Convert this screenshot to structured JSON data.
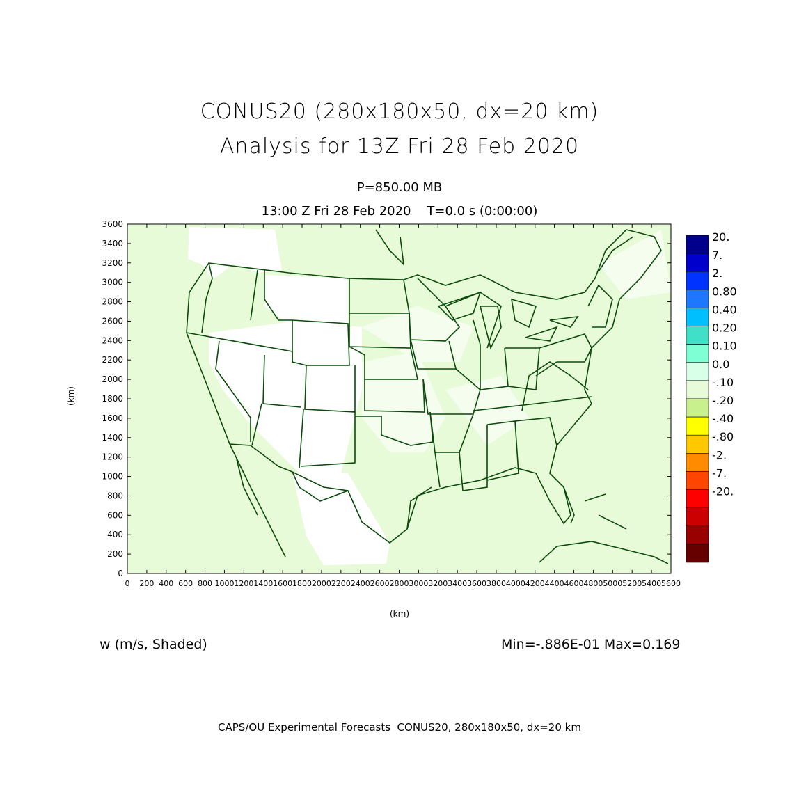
{
  "title": {
    "line1": "CONUS20 (280x180x50, dx=20 km)",
    "line2": "Analysis for 13Z Fri 28 Feb 2020"
  },
  "subtitle": {
    "level": "P=850.00 MB",
    "time": "13:00 Z Fri 28 Feb 2020    T=0.0 s (0:00:00)"
  },
  "axes": {
    "ylabel": "(km)",
    "xlabel": "(km)",
    "yticks": [
      "0",
      "200",
      "400",
      "600",
      "800",
      "1000",
      "1200",
      "1400",
      "1600",
      "1800",
      "2000",
      "2200",
      "2400",
      "2600",
      "2800",
      "3000",
      "3200",
      "3400",
      "3600"
    ],
    "xticks": [
      "0",
      "200",
      "400",
      "600",
      "800",
      "1000",
      "1200",
      "1400",
      "1600",
      "1800",
      "2000",
      "2200",
      "2400",
      "2600",
      "2800",
      "3000",
      "3200",
      "3400",
      "3600",
      "3800",
      "4000",
      "4200",
      "4400",
      "4600",
      "4800",
      "5000",
      "5200",
      "5400",
      "5600"
    ],
    "xlim": [
      0,
      5600
    ],
    "ylim": [
      0,
      3600
    ]
  },
  "colorbar": {
    "levels": [
      {
        "label": "20.",
        "color": "#00008b"
      },
      {
        "label": "7.",
        "color": "#0000cd"
      },
      {
        "label": "2.",
        "color": "#0033ff"
      },
      {
        "label": "0.80",
        "color": "#1e78ff"
      },
      {
        "label": "0.40",
        "color": "#00bfff"
      },
      {
        "label": "0.20",
        "color": "#40e0c8"
      },
      {
        "label": "0.10",
        "color": "#7fffd4"
      },
      {
        "label": "0.0",
        "color": "#d8ffe8"
      },
      {
        "label": "-.10",
        "color": "#e8fbd8"
      },
      {
        "label": "-.20",
        "color": "#c8f08c"
      },
      {
        "label": "-.40",
        "color": "#ffff00"
      },
      {
        "label": "-.80",
        "color": "#ffc800"
      },
      {
        "label": "-2.",
        "color": "#ff8c00"
      },
      {
        "label": "-7.",
        "color": "#ff4500"
      },
      {
        "label": "-20.",
        "color": "#ff0000"
      },
      {
        "label": "",
        "color": "#cc0000"
      },
      {
        "label": "",
        "color": "#990000"
      },
      {
        "label": "",
        "color": "#660000"
      }
    ]
  },
  "field": {
    "variable": "w (m/s, Shaded)",
    "minmax": "Min=-.886E-01 Max=0.169"
  },
  "colors": {
    "background_field": "#e8fbd8",
    "light_field": "#f2fdec",
    "boundary": "#0a4a0a"
  },
  "footer": "CAPS/OU Experimental Forecasts  CONUS20, 280x180x50, dx=20 km"
}
